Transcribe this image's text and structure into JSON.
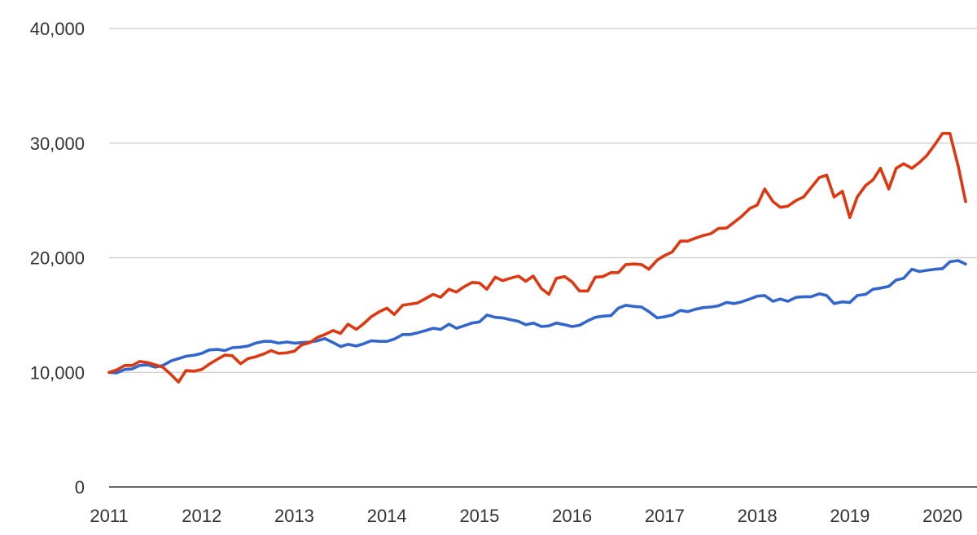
{
  "chart_data": {
    "type": "line",
    "title": "",
    "xlabel": "",
    "ylabel": "",
    "xlim": [
      2011,
      2020.25
    ],
    "ylim": [
      0,
      40000
    ],
    "grid": true,
    "x_ticks": [
      2011,
      2012,
      2013,
      2014,
      2015,
      2016,
      2017,
      2018,
      2019,
      2020
    ],
    "x_tick_labels": [
      "2011",
      "2012",
      "2013",
      "2014",
      "2015",
      "2016",
      "2017",
      "2018",
      "2019",
      "2020"
    ],
    "y_ticks": [
      0,
      10000,
      20000,
      30000,
      40000
    ],
    "y_tick_labels": [
      "0",
      "10,000",
      "20,000",
      "30,000",
      "40,000"
    ],
    "series": [
      {
        "color": "#3366cc",
        "points": [
          [
            2011.0,
            10000
          ],
          [
            2011.08,
            9950
          ],
          [
            2011.17,
            10250
          ],
          [
            2011.25,
            10300
          ],
          [
            2011.33,
            10600
          ],
          [
            2011.42,
            10650
          ],
          [
            2011.5,
            10450
          ],
          [
            2011.58,
            10600
          ],
          [
            2011.67,
            11000
          ],
          [
            2011.75,
            11200
          ],
          [
            2011.83,
            11400
          ],
          [
            2011.92,
            11500
          ],
          [
            2012.0,
            11650
          ],
          [
            2012.08,
            11950
          ],
          [
            2012.17,
            12000
          ],
          [
            2012.25,
            11900
          ],
          [
            2012.33,
            12150
          ],
          [
            2012.42,
            12200
          ],
          [
            2012.5,
            12300
          ],
          [
            2012.58,
            12550
          ],
          [
            2012.67,
            12700
          ],
          [
            2012.75,
            12700
          ],
          [
            2012.83,
            12550
          ],
          [
            2012.92,
            12650
          ],
          [
            2013.0,
            12550
          ],
          [
            2013.08,
            12600
          ],
          [
            2013.17,
            12650
          ],
          [
            2013.25,
            12750
          ],
          [
            2013.33,
            12950
          ],
          [
            2013.42,
            12600
          ],
          [
            2013.5,
            12250
          ],
          [
            2013.58,
            12450
          ],
          [
            2013.67,
            12300
          ],
          [
            2013.75,
            12500
          ],
          [
            2013.83,
            12750
          ],
          [
            2013.92,
            12700
          ],
          [
            2014.0,
            12700
          ],
          [
            2014.08,
            12900
          ],
          [
            2014.17,
            13300
          ],
          [
            2014.25,
            13300
          ],
          [
            2014.33,
            13450
          ],
          [
            2014.42,
            13650
          ],
          [
            2014.5,
            13850
          ],
          [
            2014.58,
            13750
          ],
          [
            2014.67,
            14200
          ],
          [
            2014.75,
            13850
          ],
          [
            2014.83,
            14050
          ],
          [
            2014.92,
            14300
          ],
          [
            2015.0,
            14400
          ],
          [
            2015.08,
            15000
          ],
          [
            2015.17,
            14800
          ],
          [
            2015.25,
            14750
          ],
          [
            2015.33,
            14600
          ],
          [
            2015.42,
            14450
          ],
          [
            2015.5,
            14150
          ],
          [
            2015.58,
            14300
          ],
          [
            2015.67,
            14000
          ],
          [
            2015.75,
            14050
          ],
          [
            2015.83,
            14300
          ],
          [
            2015.92,
            14150
          ],
          [
            2016.0,
            14000
          ],
          [
            2016.08,
            14100
          ],
          [
            2016.17,
            14500
          ],
          [
            2016.25,
            14800
          ],
          [
            2016.33,
            14900
          ],
          [
            2016.42,
            14950
          ],
          [
            2016.5,
            15600
          ],
          [
            2016.58,
            15850
          ],
          [
            2016.67,
            15750
          ],
          [
            2016.75,
            15700
          ],
          [
            2016.83,
            15300
          ],
          [
            2016.92,
            14750
          ],
          [
            2017.0,
            14850
          ],
          [
            2017.08,
            15000
          ],
          [
            2017.17,
            15400
          ],
          [
            2017.25,
            15300
          ],
          [
            2017.33,
            15500
          ],
          [
            2017.42,
            15650
          ],
          [
            2017.5,
            15700
          ],
          [
            2017.58,
            15800
          ],
          [
            2017.67,
            16100
          ],
          [
            2017.75,
            16000
          ],
          [
            2017.83,
            16150
          ],
          [
            2017.92,
            16400
          ],
          [
            2018.0,
            16650
          ],
          [
            2018.08,
            16700
          ],
          [
            2018.17,
            16200
          ],
          [
            2018.25,
            16400
          ],
          [
            2018.33,
            16200
          ],
          [
            2018.42,
            16550
          ],
          [
            2018.5,
            16600
          ],
          [
            2018.58,
            16600
          ],
          [
            2018.67,
            16850
          ],
          [
            2018.75,
            16700
          ],
          [
            2018.83,
            16000
          ],
          [
            2018.92,
            16150
          ],
          [
            2019.0,
            16100
          ],
          [
            2019.08,
            16700
          ],
          [
            2019.17,
            16800
          ],
          [
            2019.25,
            17250
          ],
          [
            2019.33,
            17350
          ],
          [
            2019.42,
            17500
          ],
          [
            2019.5,
            18050
          ],
          [
            2019.58,
            18200
          ],
          [
            2019.67,
            19000
          ],
          [
            2019.75,
            18800
          ],
          [
            2019.83,
            18900
          ],
          [
            2019.92,
            19000
          ],
          [
            2020.0,
            19050
          ],
          [
            2020.08,
            19650
          ],
          [
            2020.17,
            19750
          ],
          [
            2020.25,
            19450
          ]
        ]
      },
      {
        "color": "#dc3912",
        "points": [
          [
            2011.0,
            10000
          ],
          [
            2011.08,
            10200
          ],
          [
            2011.17,
            10600
          ],
          [
            2011.25,
            10600
          ],
          [
            2011.33,
            10950
          ],
          [
            2011.42,
            10850
          ],
          [
            2011.5,
            10650
          ],
          [
            2011.58,
            10450
          ],
          [
            2011.67,
            9800
          ],
          [
            2011.75,
            9150
          ],
          [
            2011.83,
            10150
          ],
          [
            2011.92,
            10100
          ],
          [
            2012.0,
            10250
          ],
          [
            2012.08,
            10700
          ],
          [
            2012.17,
            11150
          ],
          [
            2012.25,
            11500
          ],
          [
            2012.33,
            11450
          ],
          [
            2012.42,
            10750
          ],
          [
            2012.5,
            11200
          ],
          [
            2012.58,
            11350
          ],
          [
            2012.67,
            11600
          ],
          [
            2012.75,
            11900
          ],
          [
            2012.83,
            11650
          ],
          [
            2012.92,
            11700
          ],
          [
            2013.0,
            11850
          ],
          [
            2013.08,
            12400
          ],
          [
            2013.17,
            12600
          ],
          [
            2013.25,
            13050
          ],
          [
            2013.33,
            13300
          ],
          [
            2013.42,
            13650
          ],
          [
            2013.5,
            13400
          ],
          [
            2013.58,
            14200
          ],
          [
            2013.67,
            13750
          ],
          [
            2013.75,
            14250
          ],
          [
            2013.83,
            14850
          ],
          [
            2013.92,
            15300
          ],
          [
            2014.0,
            15600
          ],
          [
            2014.08,
            15050
          ],
          [
            2014.17,
            15850
          ],
          [
            2014.25,
            15950
          ],
          [
            2014.33,
            16050
          ],
          [
            2014.42,
            16450
          ],
          [
            2014.5,
            16800
          ],
          [
            2014.58,
            16550
          ],
          [
            2014.67,
            17250
          ],
          [
            2014.75,
            17000
          ],
          [
            2014.83,
            17450
          ],
          [
            2014.92,
            17850
          ],
          [
            2015.0,
            17800
          ],
          [
            2015.08,
            17250
          ],
          [
            2015.17,
            18300
          ],
          [
            2015.25,
            18000
          ],
          [
            2015.33,
            18200
          ],
          [
            2015.42,
            18400
          ],
          [
            2015.5,
            17950
          ],
          [
            2015.58,
            18400
          ],
          [
            2015.67,
            17300
          ],
          [
            2015.75,
            16800
          ],
          [
            2015.83,
            18200
          ],
          [
            2015.92,
            18350
          ],
          [
            2016.0,
            17900
          ],
          [
            2016.08,
            17100
          ],
          [
            2016.17,
            17100
          ],
          [
            2016.25,
            18300
          ],
          [
            2016.33,
            18350
          ],
          [
            2016.42,
            18700
          ],
          [
            2016.5,
            18700
          ],
          [
            2016.58,
            19400
          ],
          [
            2016.67,
            19450
          ],
          [
            2016.75,
            19400
          ],
          [
            2016.83,
            19000
          ],
          [
            2016.92,
            19800
          ],
          [
            2017.0,
            20200
          ],
          [
            2017.08,
            20500
          ],
          [
            2017.17,
            21450
          ],
          [
            2017.25,
            21450
          ],
          [
            2017.33,
            21700
          ],
          [
            2017.42,
            21950
          ],
          [
            2017.5,
            22100
          ],
          [
            2017.58,
            22550
          ],
          [
            2017.67,
            22600
          ],
          [
            2017.75,
            23100
          ],
          [
            2017.83,
            23600
          ],
          [
            2017.92,
            24300
          ],
          [
            2018.0,
            24600
          ],
          [
            2018.08,
            26000
          ],
          [
            2018.17,
            24900
          ],
          [
            2018.25,
            24400
          ],
          [
            2018.33,
            24500
          ],
          [
            2018.42,
            25000
          ],
          [
            2018.5,
            25300
          ],
          [
            2018.58,
            26100
          ],
          [
            2018.67,
            27000
          ],
          [
            2018.75,
            27200
          ],
          [
            2018.83,
            25300
          ],
          [
            2018.92,
            25800
          ],
          [
            2019.0,
            23500
          ],
          [
            2019.08,
            25300
          ],
          [
            2019.17,
            26300
          ],
          [
            2019.25,
            26800
          ],
          [
            2019.33,
            27800
          ],
          [
            2019.42,
            26000
          ],
          [
            2019.5,
            27800
          ],
          [
            2019.58,
            28200
          ],
          [
            2019.67,
            27800
          ],
          [
            2019.75,
            28300
          ],
          [
            2019.83,
            28900
          ],
          [
            2019.92,
            29900
          ],
          [
            2020.0,
            30850
          ],
          [
            2020.08,
            30850
          ],
          [
            2020.17,
            28000
          ],
          [
            2020.25,
            24900
          ]
        ]
      }
    ]
  }
}
